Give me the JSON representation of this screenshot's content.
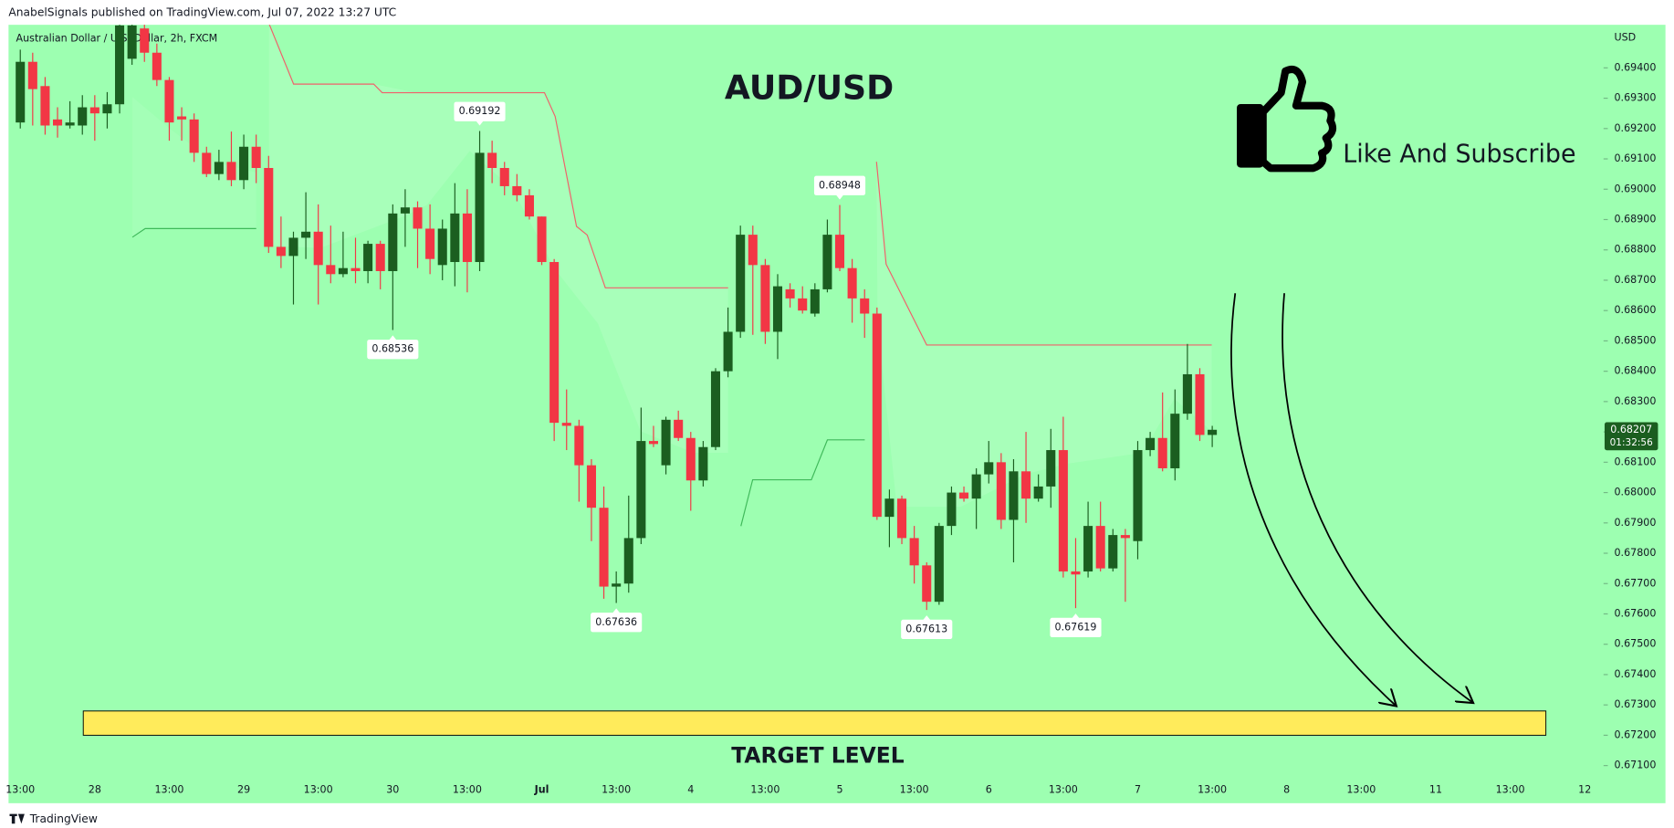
{
  "header": "AnabelSignals published on TradingView.com, Jul 07, 2022 13:27 UTC",
  "footer": "TradingView",
  "chart_data": {
    "type": "candlestick",
    "symbol": "Australian Dollar / U.S. Dollar, 2h, FXCM",
    "title": "AUD/USD",
    "currency": "USD",
    "call_to_action": "Like And Subscribe",
    "target_label": "TARGET LEVEL",
    "target_zone": [
      0.672,
      0.6728
    ],
    "target_color": "#ffeb5b",
    "up_color": "#1b5e20",
    "down_color": "#f23645",
    "background": "#9dffb1",
    "categories": [
      "13:00",
      "28",
      "13:00",
      "29",
      "13:00",
      "30",
      "13:00",
      "Jul",
      "13:00",
      "4",
      "13:00",
      "5",
      "13:00",
      "6",
      "13:00",
      "7",
      "13:00",
      "8",
      "13:00",
      "11",
      "13:00",
      "12"
    ],
    "open": [
      0.6922,
      0.6942,
      0.6934,
      0.6923,
      0.6921,
      0.6921,
      0.6927,
      0.6925,
      0.6928,
      0.6943,
      0.6953,
      0.6945,
      0.6936,
      0.6924,
      0.6923,
      0.6912,
      0.6905,
      0.6909,
      0.6903,
      0.6914,
      0.6907,
      0.6881,
      0.6878,
      0.6884,
      0.6886,
      0.6875,
      0.6872,
      0.6874,
      0.6873,
      0.6882,
      0.6873,
      0.6892,
      0.6894,
      0.6887,
      0.6875,
      0.6876,
      0.6892,
      0.6876,
      0.6912,
      0.6907,
      0.6901,
      0.6898,
      0.6891,
      0.6876,
      0.6823,
      0.6822,
      0.6809,
      0.6795,
      0.6769,
      0.677,
      0.6785,
      0.6817,
      0.6809,
      0.6824,
      0.6818,
      0.6804,
      0.6815,
      0.684,
      0.6853,
      0.6885,
      0.6875,
      0.6853,
      0.6867,
      0.6864,
      0.6859,
      0.6867,
      0.6885,
      0.6874,
      0.6864,
      0.6859,
      0.6792,
      0.6798,
      0.6785,
      0.6776,
      0.6764,
      0.6789,
      0.68,
      0.6798,
      0.6806,
      0.681,
      0.6791,
      0.6807,
      0.6798,
      0.6802,
      0.6814,
      0.6774,
      0.6774,
      0.6789,
      0.6775,
      0.6786,
      0.6784,
      0.6814,
      0.6818,
      0.6808,
      0.6826,
      0.6839,
      0.6819
    ],
    "high": [
      0.6946,
      0.6945,
      0.6937,
      0.6927,
      0.6929,
      0.6931,
      0.6931,
      0.6932,
      0.6955,
      0.6955,
      0.6955,
      0.6948,
      0.6937,
      0.6927,
      0.6925,
      0.6914,
      0.6913,
      0.6919,
      0.6918,
      0.6918,
      0.6911,
      0.6891,
      0.6886,
      0.6899,
      0.6895,
      0.6888,
      0.6886,
      0.6884,
      0.6883,
      0.6883,
      0.6895,
      0.69,
      0.6896,
      0.6895,
      0.689,
      0.6902,
      0.69,
      0.69192,
      0.6916,
      0.6909,
      0.6905,
      0.69,
      0.6891,
      0.6877,
      0.6834,
      0.6824,
      0.6811,
      0.6802,
      0.6774,
      0.6799,
      0.6828,
      0.6822,
      0.6825,
      0.6827,
      0.682,
      0.6817,
      0.6841,
      0.6861,
      0.6888,
      0.6888,
      0.6877,
      0.6872,
      0.6869,
      0.6868,
      0.6869,
      0.689,
      0.68948,
      0.6877,
      0.6867,
      0.6861,
      0.6801,
      0.6799,
      0.6789,
      0.6777,
      0.679,
      0.6802,
      0.6802,
      0.6808,
      0.6817,
      0.6813,
      0.6811,
      0.682,
      0.6806,
      0.6821,
      0.6825,
      0.6785,
      0.6797,
      0.6797,
      0.6788,
      0.6788,
      0.6817,
      0.682,
      0.6833,
      0.6834,
      0.6849,
      0.6841,
      0.6822
    ],
    "low": [
      0.692,
      0.6921,
      0.6918,
      0.6917,
      0.692,
      0.6918,
      0.6916,
      0.692,
      0.6925,
      0.6941,
      0.6942,
      0.6934,
      0.6916,
      0.6916,
      0.6909,
      0.6904,
      0.6903,
      0.6901,
      0.69,
      0.6902,
      0.6879,
      0.6874,
      0.6862,
      0.6877,
      0.6862,
      0.6869,
      0.6871,
      0.6869,
      0.6869,
      0.6867,
      0.68536,
      0.6881,
      0.6874,
      0.6872,
      0.687,
      0.6868,
      0.6866,
      0.6873,
      0.6902,
      0.6898,
      0.6896,
      0.689,
      0.6875,
      0.6817,
      0.6814,
      0.6797,
      0.6784,
      0.6765,
      0.67636,
      0.6767,
      0.6783,
      0.6815,
      0.6806,
      0.6817,
      0.6794,
      0.6802,
      0.6814,
      0.6838,
      0.6851,
      0.6852,
      0.6849,
      0.6844,
      0.6861,
      0.6859,
      0.6858,
      0.6866,
      0.6873,
      0.6856,
      0.6851,
      0.6791,
      0.6782,
      0.6783,
      0.677,
      0.67613,
      0.6763,
      0.6786,
      0.6797,
      0.6788,
      0.6803,
      0.6788,
      0.6777,
      0.679,
      0.6797,
      0.6795,
      0.6772,
      0.67619,
      0.6772,
      0.6774,
      0.6774,
      0.6764,
      0.6778,
      0.6812,
      0.6807,
      0.6804,
      0.6824,
      0.6817,
      0.6815
    ],
    "close": [
      0.6942,
      0.6933,
      0.6921,
      0.6921,
      0.6922,
      0.6927,
      0.6925,
      0.6928,
      0.6954,
      0.6954,
      0.6945,
      0.6936,
      0.6922,
      0.6923,
      0.6912,
      0.6905,
      0.6909,
      0.6903,
      0.6914,
      0.6907,
      0.6881,
      0.6878,
      0.6884,
      0.6886,
      0.6875,
      0.6872,
      0.6874,
      0.6873,
      0.6882,
      0.6873,
      0.6892,
      0.6894,
      0.6887,
      0.6877,
      0.6887,
      0.6892,
      0.6876,
      0.6912,
      0.6907,
      0.6901,
      0.6898,
      0.6891,
      0.6876,
      0.6823,
      0.6822,
      0.6809,
      0.6795,
      0.6769,
      0.677,
      0.6785,
      0.6817,
      0.6816,
      0.6824,
      0.6818,
      0.6804,
      0.6815,
      0.684,
      0.6853,
      0.6885,
      0.6875,
      0.6853,
      0.6868,
      0.6864,
      0.686,
      0.6867,
      0.6885,
      0.6874,
      0.6864,
      0.6859,
      0.6792,
      0.6798,
      0.6785,
      0.6776,
      0.6764,
      0.6789,
      0.68,
      0.6798,
      0.6806,
      0.681,
      0.6791,
      0.6807,
      0.6798,
      0.6802,
      0.6814,
      0.6774,
      0.6773,
      0.6789,
      0.6775,
      0.6786,
      0.6785,
      0.6814,
      0.6818,
      0.6808,
      0.6826,
      0.6839,
      0.6819,
      0.68207
    ],
    "annotations": [
      "0.69192",
      "0.68536",
      "0.67636",
      "0.67613",
      "0.67619",
      "0.68948"
    ],
    "last_price_label": "0.68207",
    "countdown": "01:32:56",
    "ylim": [
      0.66976,
      0.69542
    ],
    "yticks": [
      {
        "value": 0.671,
        "label": "0.67100"
      },
      {
        "value": 0.672,
        "label": "0.67200"
      },
      {
        "value": 0.673,
        "label": "0.67300"
      },
      {
        "value": 0.674,
        "label": "0.67400"
      },
      {
        "value": 0.675,
        "label": "0.67500"
      },
      {
        "value": 0.676,
        "label": "0.67600"
      },
      {
        "value": 0.677,
        "label": "0.67700"
      },
      {
        "value": 0.678,
        "label": "0.67800"
      },
      {
        "value": 0.679,
        "label": "0.67900"
      },
      {
        "value": 0.68,
        "label": "0.68000"
      },
      {
        "value": 0.681,
        "label": "0.68100"
      },
      {
        "value": 0.682,
        "label": "0.68200"
      },
      {
        "value": 0.683,
        "label": "0.68300"
      },
      {
        "value": 0.684,
        "label": "0.68400"
      },
      {
        "value": 0.685,
        "label": "0.68500"
      },
      {
        "value": 0.686,
        "label": "0.68600"
      },
      {
        "value": 0.687,
        "label": "0.68700"
      },
      {
        "value": 0.688,
        "label": "0.68800"
      },
      {
        "value": 0.689,
        "label": "0.68900"
      },
      {
        "value": 0.69,
        "label": "0.69000"
      },
      {
        "value": 0.691,
        "label": "0.69100"
      },
      {
        "value": 0.692,
        "label": "0.69200"
      },
      {
        "value": 0.693,
        "label": "0.69300"
      },
      {
        "value": 0.694,
        "label": "0.69400"
      }
    ],
    "grid": false
  }
}
